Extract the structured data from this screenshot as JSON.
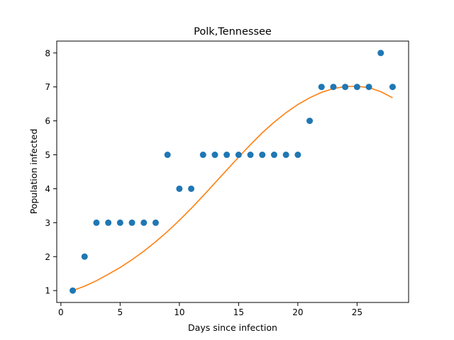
{
  "chart_data": {
    "type": "scatter",
    "title": "Polk,Tennessee",
    "xlabel": "Days since infection",
    "ylabel": "Population infected",
    "xlim": [
      -0.35,
      29.35
    ],
    "ylim": [
      0.65,
      8.35
    ],
    "xticks": [
      0,
      5,
      10,
      15,
      20,
      25
    ],
    "yticks": [
      1,
      2,
      3,
      4,
      5,
      6,
      7,
      8
    ],
    "grid": false,
    "legend": "none",
    "series": [
      {
        "kind": "points",
        "color": "#1f77b4",
        "x": [
          1,
          2,
          3,
          4,
          5,
          6,
          7,
          8,
          9,
          10,
          11,
          12,
          13,
          14,
          15,
          16,
          17,
          18,
          19,
          20,
          21,
          22,
          23,
          24,
          25,
          26,
          27,
          28
        ],
        "y": [
          1,
          2,
          3,
          3,
          3,
          3,
          3,
          3,
          5,
          4,
          4,
          5,
          5,
          5,
          5,
          5,
          5,
          5,
          5,
          5,
          6,
          7,
          7,
          7,
          7,
          7,
          8,
          7
        ]
      },
      {
        "kind": "line",
        "color": "#ff7f0e",
        "x": [
          1,
          2,
          3,
          4,
          5,
          6,
          7,
          8,
          9,
          10,
          11,
          12,
          13,
          14,
          15,
          16,
          17,
          18,
          19,
          20,
          21,
          22,
          23,
          24,
          25,
          26,
          27,
          28
        ],
        "y": [
          1.0,
          1.13,
          1.29,
          1.48,
          1.68,
          1.91,
          2.16,
          2.44,
          2.74,
          3.07,
          3.42,
          3.79,
          4.17,
          4.55,
          4.93,
          5.3,
          5.65,
          5.96,
          6.24,
          6.48,
          6.68,
          6.84,
          6.95,
          7.01,
          7.02,
          6.98,
          6.86,
          6.68
        ]
      }
    ]
  }
}
